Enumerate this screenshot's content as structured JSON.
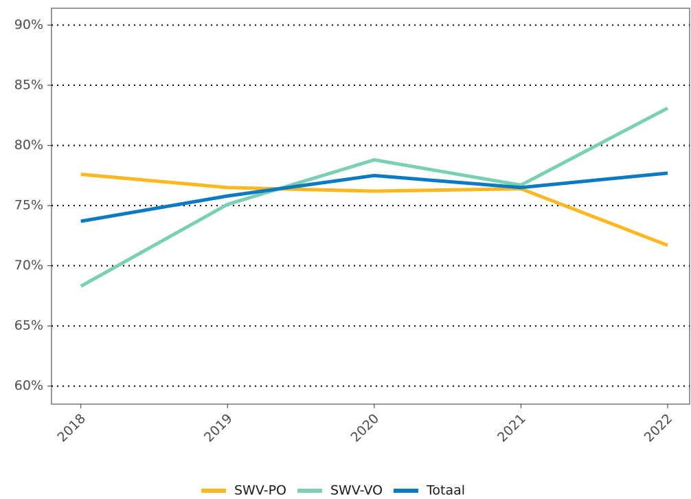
{
  "chart_data": {
    "type": "line",
    "x": [
      2018,
      2019,
      2020,
      2021,
      2022
    ],
    "series": [
      {
        "name": "SWV-PO",
        "color": "#fbb821",
        "values": [
          77.6,
          76.5,
          76.2,
          76.4,
          71.7
        ]
      },
      {
        "name": "SWV-VO",
        "color": "#7acfb5",
        "values": [
          68.3,
          75.1,
          78.8,
          76.7,
          83.1
        ]
      },
      {
        "name": "Totaal",
        "color": "#0a7bc2",
        "values": [
          73.7,
          75.8,
          77.5,
          76.5,
          77.7
        ]
      }
    ],
    "xlim": [
      2017.8,
      2022.15
    ],
    "ylim": [
      58.5,
      91.4
    ],
    "xticks": [
      2018,
      2019,
      2020,
      2021,
      2022
    ],
    "yticks": [
      {
        "value": 60,
        "label": "60%"
      },
      {
        "value": 65,
        "label": "65%"
      },
      {
        "value": 70,
        "label": "70%"
      },
      {
        "value": 75,
        "label": "75%"
      },
      {
        "value": 80,
        "label": "80%"
      },
      {
        "value": 85,
        "label": "85%"
      },
      {
        "value": 90,
        "label": "90%"
      }
    ],
    "grid": true,
    "legend": "bottom"
  }
}
